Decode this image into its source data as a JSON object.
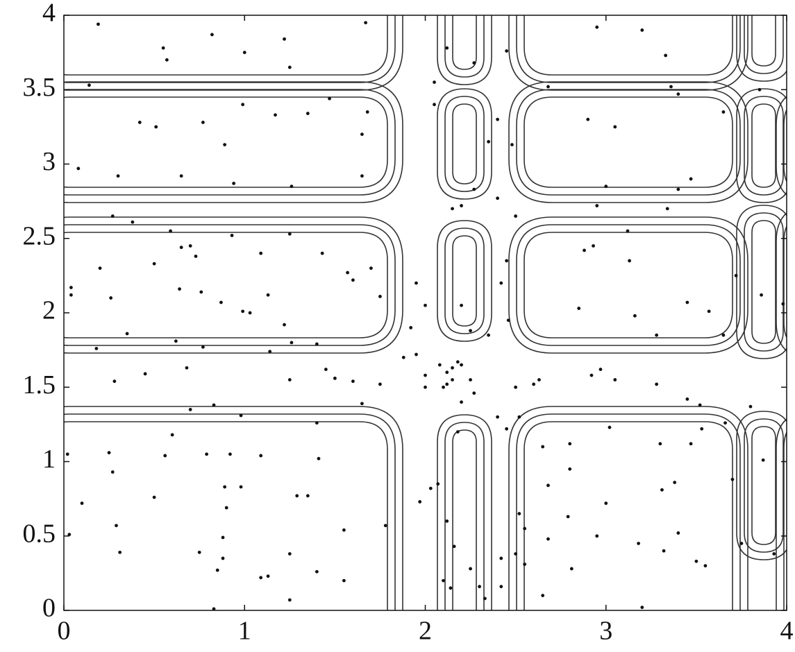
{
  "chart_data": {
    "type": "scatter",
    "xlim": [
      0,
      4
    ],
    "ylim": [
      0,
      4
    ],
    "xticks": [
      0,
      1,
      2,
      3,
      4
    ],
    "yticks": [
      0,
      0.5,
      1,
      1.5,
      2,
      2.5,
      3,
      3.5,
      4
    ],
    "series": [
      {
        "color": "#111111",
        "x": [
          0.19,
          0.82,
          1.0,
          0.55,
          0.57,
          1.22,
          1.25,
          1.67,
          0.14,
          0.42,
          0.51,
          0.77,
          0.89,
          0.99,
          1.17,
          1.35,
          1.47,
          1.68,
          1.65,
          0.08,
          0.3,
          0.65,
          0.94,
          1.26,
          1.65,
          0.38,
          0.27,
          0.59,
          0.65,
          0.7,
          0.93,
          1.25,
          0.2,
          0.5,
          0.73,
          1.09,
          1.43,
          1.57,
          0.04,
          0.04,
          0.26,
          0.64,
          0.76,
          0.87,
          0.99,
          1.03,
          1.13,
          1.22,
          1.6,
          1.7,
          1.75,
          0.35,
          0.18,
          0.62,
          0.77,
          1.26,
          1.4,
          1.14,
          0.28,
          0.45,
          0.68,
          1.25,
          1.45,
          1.5,
          1.6,
          1.75,
          0.7,
          0.83,
          1.4,
          0.98,
          1.65,
          0.02,
          0.25,
          0.6,
          0.56,
          0.79,
          0.92,
          1.09,
          1.41,
          0.27,
          0.1,
          0.5,
          0.89,
          0.98,
          1.29,
          1.35,
          0.9,
          0.29,
          0.03,
          0.88,
          1.78,
          1.55,
          0.31,
          0.75,
          0.88,
          0.85,
          1.09,
          1.13,
          1.25,
          1.4,
          1.55,
          0.83,
          1.25,
          2.07,
          2.12,
          2.14,
          2.25,
          2.3,
          2.03,
          2.16,
          1.97,
          2.33,
          2.42,
          2.1,
          2.18,
          2.0,
          2.1,
          2.12,
          2.15,
          2.12,
          2.15,
          2.18,
          2.2,
          2.25,
          2.2,
          2.27,
          2.0,
          2.08,
          1.95,
          1.88,
          2.2,
          2.2,
          2.15,
          2.27,
          2.05,
          2.05,
          2.12,
          2.27,
          2.45,
          2.4,
          2.35,
          2.48,
          2.4,
          2.5,
          2.45,
          2.42,
          1.95,
          1.92,
          2.0,
          2.35,
          2.46,
          2.25,
          2.5,
          2.6,
          2.63,
          2.4,
          2.45,
          2.52,
          2.55,
          2.52,
          2.5,
          2.55,
          2.42,
          3.36,
          3.05,
          2.9,
          3.4,
          2.95,
          3.2,
          3.33,
          2.68,
          3.0,
          2.95,
          3.4,
          3.47,
          3.65,
          3.85,
          3.12,
          2.93,
          3.13,
          2.88,
          3.34,
          3.72,
          3.86,
          3.98,
          3.45,
          2.85,
          3.16,
          3.28,
          3.57,
          3.65,
          2.92,
          2.97,
          3.05,
          3.28,
          3.45,
          3.52,
          3.8,
          3.66,
          3.53,
          3.3,
          3.47,
          2.8,
          2.65,
          3.02,
          2.8,
          2.68,
          3.0,
          3.31,
          3.38,
          2.79,
          2.68,
          2.95,
          3.18,
          3.32,
          3.2,
          3.5,
          2.65,
          2.81,
          3.55,
          3.4,
          3.7,
          3.75,
          3.87,
          3.93
        ],
        "y": [
          3.94,
          3.87,
          3.75,
          3.78,
          3.7,
          3.84,
          3.65,
          3.95,
          3.53,
          3.28,
          3.25,
          3.28,
          3.13,
          3.4,
          3.33,
          3.34,
          3.44,
          3.35,
          3.2,
          2.97,
          2.92,
          2.92,
          2.87,
          2.85,
          2.92,
          2.61,
          2.65,
          2.55,
          2.44,
          2.45,
          2.52,
          2.53,
          2.3,
          2.33,
          2.38,
          2.4,
          2.4,
          2.27,
          2.17,
          2.12,
          2.1,
          2.16,
          2.14,
          2.07,
          2.01,
          2.0,
          2.12,
          1.92,
          2.22,
          2.3,
          2.11,
          1.86,
          1.76,
          1.81,
          1.77,
          1.8,
          1.79,
          1.74,
          1.54,
          1.59,
          1.63,
          1.55,
          1.62,
          1.56,
          1.54,
          1.52,
          1.35,
          1.38,
          1.26,
          1.31,
          1.39,
          1.05,
          1.06,
          1.18,
          1.04,
          1.05,
          1.05,
          1.04,
          1.02,
          0.93,
          0.72,
          0.76,
          0.83,
          0.83,
          0.77,
          0.77,
          0.69,
          0.57,
          0.51,
          0.49,
          0.57,
          0.54,
          0.39,
          0.39,
          0.35,
          0.27,
          0.22,
          0.23,
          0.38,
          0.26,
          0.2,
          0.01,
          0.07,
          0.85,
          0.6,
          0.15,
          0.28,
          0.16,
          0.82,
          0.43,
          0.73,
          0.08,
          0.16,
          0.2,
          1.2,
          1.5,
          1.5,
          1.52,
          1.55,
          1.6,
          1.63,
          1.67,
          1.65,
          1.55,
          1.4,
          1.46,
          1.58,
          1.65,
          1.72,
          1.7,
          2.05,
          2.72,
          2.7,
          2.83,
          3.4,
          3.55,
          3.78,
          3.68,
          3.76,
          3.3,
          3.15,
          3.13,
          2.77,
          2.65,
          2.35,
          2.2,
          2.2,
          1.9,
          2.05,
          1.85,
          1.95,
          1.88,
          1.5,
          1.52,
          1.55,
          1.3,
          1.22,
          1.3,
          0.55,
          0.65,
          0.38,
          0.31,
          0.35,
          3.52,
          3.25,
          3.3,
          3.47,
          3.92,
          3.9,
          3.73,
          3.52,
          2.85,
          2.72,
          2.83,
          2.9,
          3.35,
          3.5,
          2.55,
          2.45,
          2.35,
          2.42,
          2.7,
          2.25,
          2.12,
          2.06,
          2.07,
          2.03,
          1.98,
          1.85,
          2.01,
          1.85,
          1.58,
          1.62,
          1.55,
          1.52,
          1.42,
          1.38,
          1.37,
          1.26,
          1.22,
          1.12,
          1.12,
          1.12,
          1.1,
          1.23,
          0.95,
          0.84,
          0.72,
          0.81,
          0.86,
          0.63,
          0.48,
          0.5,
          0.45,
          0.4,
          0.02,
          0.33,
          0.1,
          0.28,
          0.3,
          0.52,
          0.88,
          0.45,
          1.01,
          0.38
        ]
      }
    ]
  }
}
